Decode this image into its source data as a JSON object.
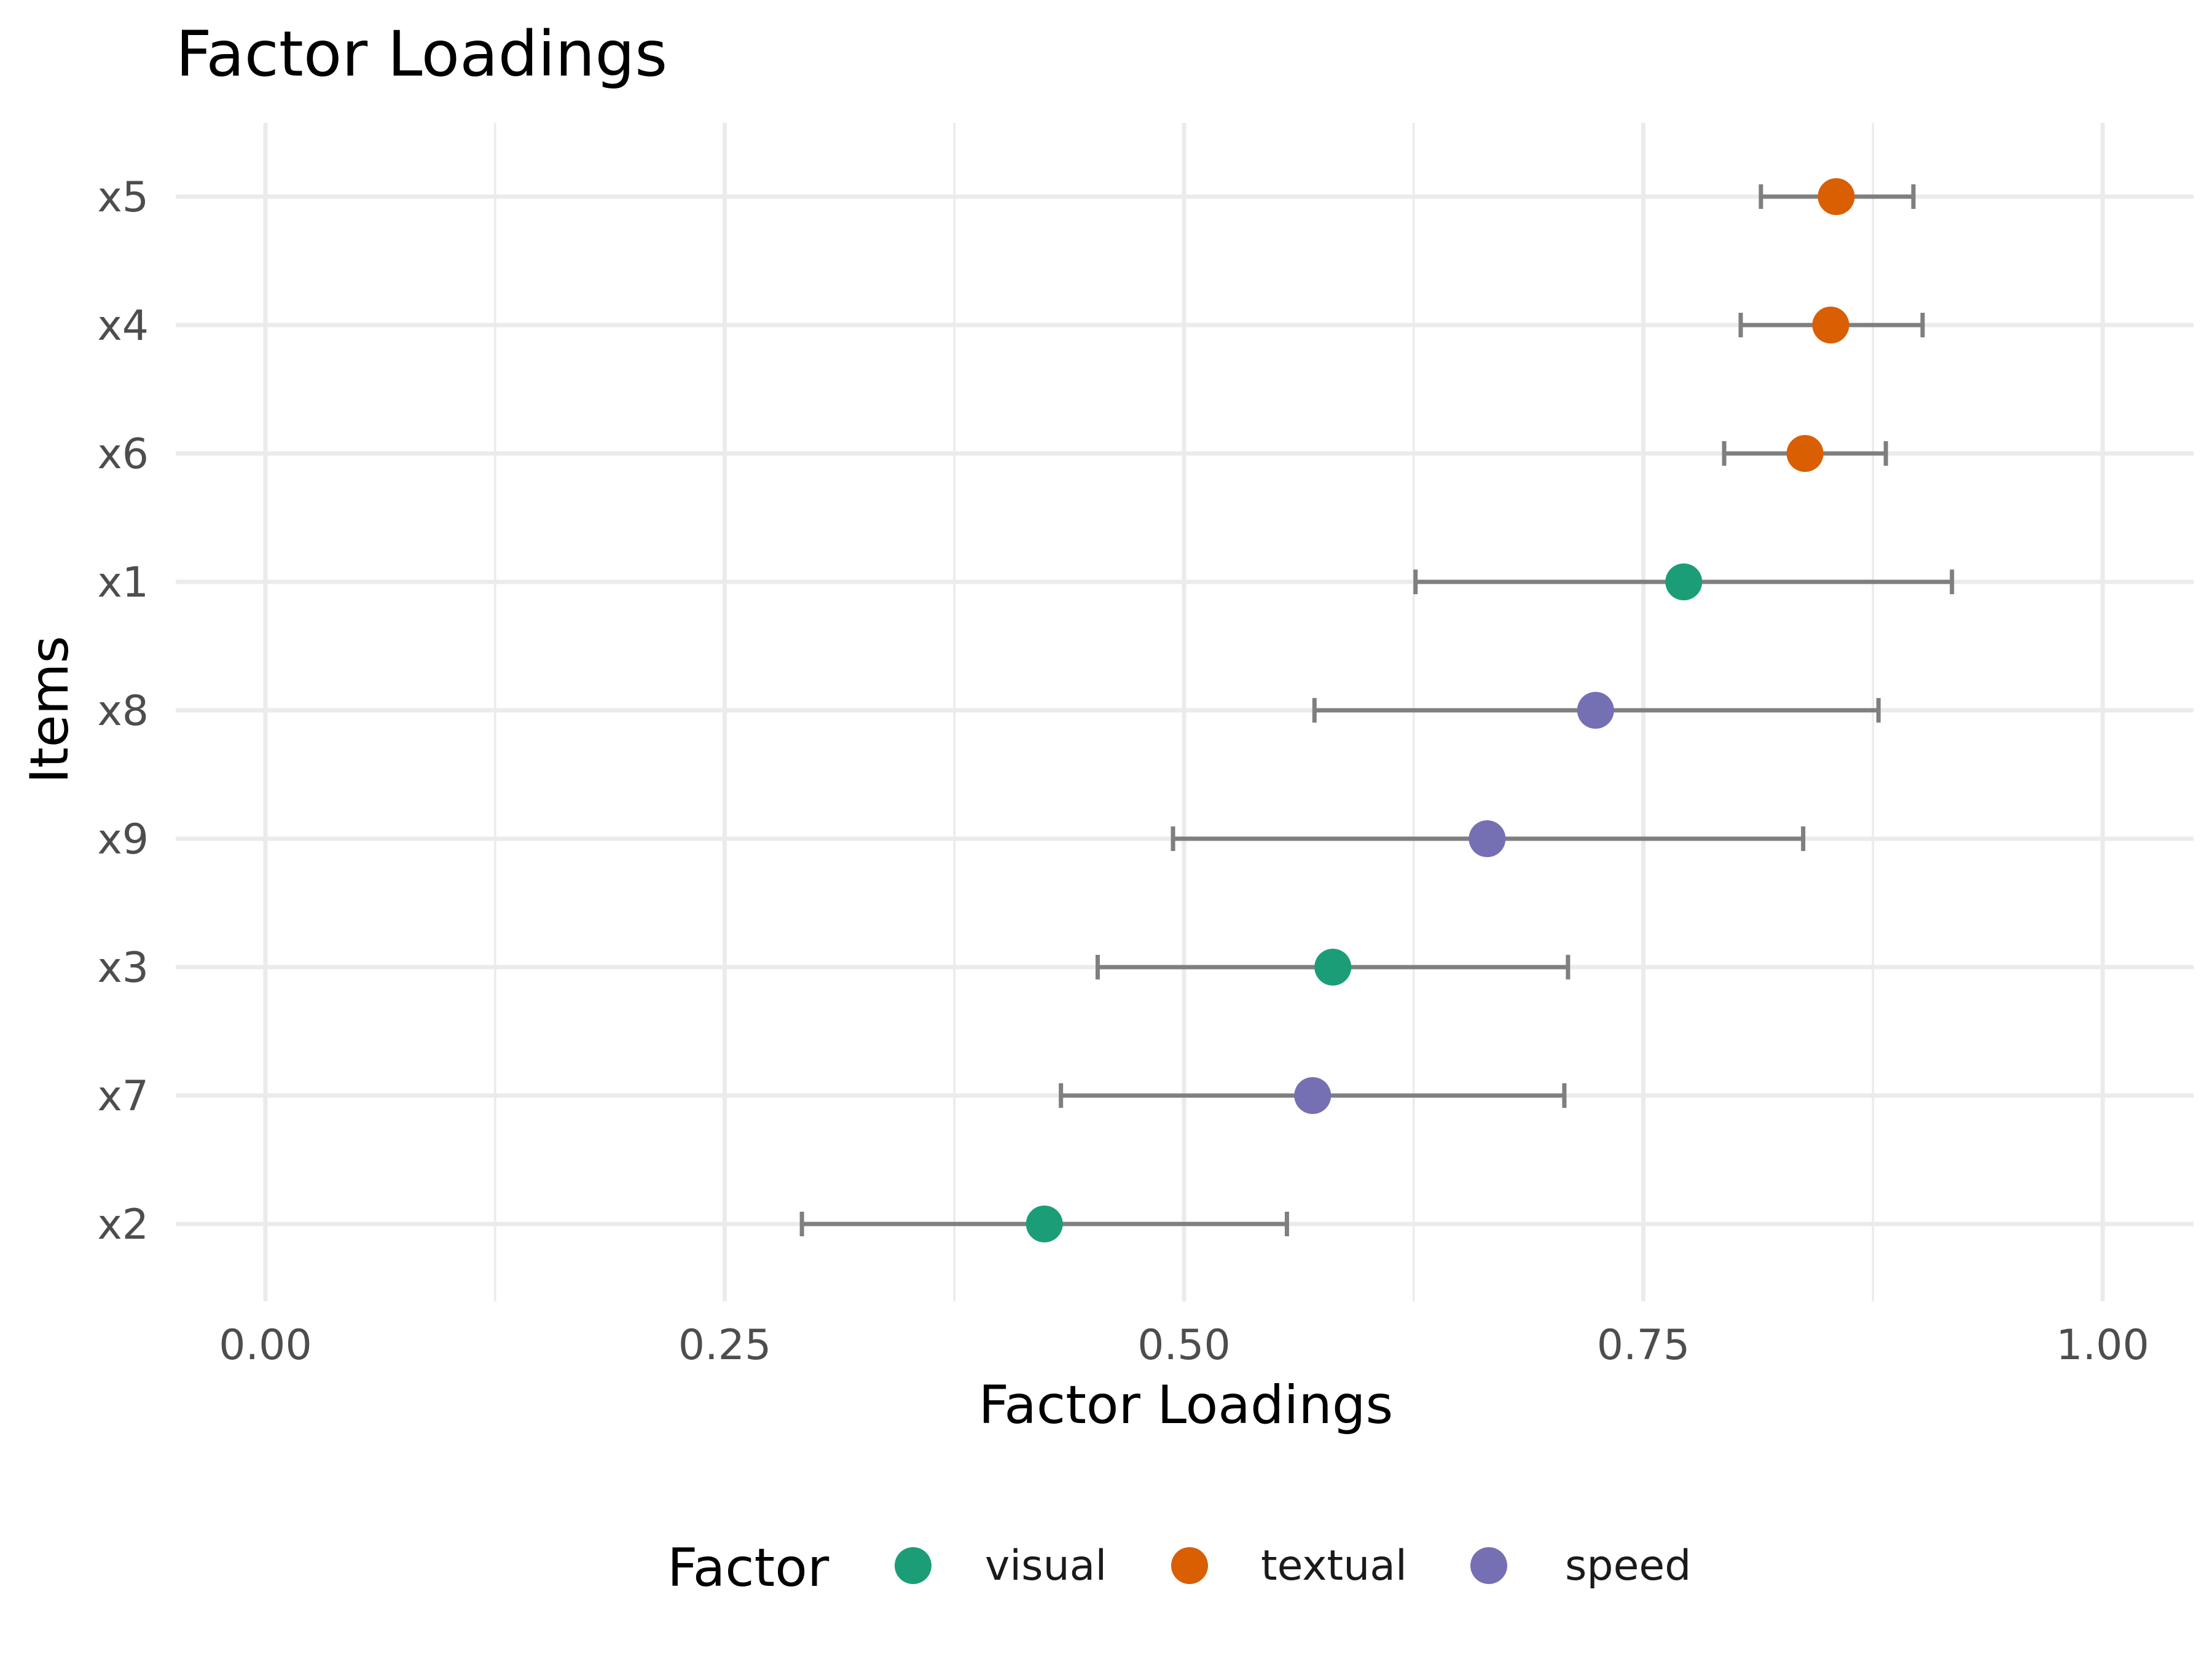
{
  "chart_data": {
    "type": "scatter",
    "title": "Factor Loadings",
    "xlabel": "Factor Loadings",
    "ylabel": "Items",
    "xlim": [
      -0.05,
      1.05
    ],
    "x_ticks": [
      0,
      0.25,
      0.5,
      0.75,
      1
    ],
    "x_tick_labels": [
      "0.00",
      "0.25",
      "0.50",
      "0.75",
      "1.00"
    ],
    "grid": true,
    "legend_position": "bottom",
    "legend_title": "Factor",
    "factors": [
      {
        "name": "visual",
        "color": "#1b9e77"
      },
      {
        "name": "textual",
        "color": "#d95f02"
      },
      {
        "name": "speed",
        "color": "#7570b3"
      }
    ],
    "items_top_to_bottom": [
      "x5",
      "x4",
      "x6",
      "x1",
      "x8",
      "x9",
      "x3",
      "x7",
      "x2"
    ],
    "points": [
      {
        "item": "x5",
        "factor": "textual",
        "loading": 0.855,
        "ci_low": 0.814,
        "ci_high": 0.897
      },
      {
        "item": "x4",
        "factor": "textual",
        "loading": 0.852,
        "ci_low": 0.803,
        "ci_high": 0.902
      },
      {
        "item": "x6",
        "factor": "textual",
        "loading": 0.838,
        "ci_low": 0.794,
        "ci_high": 0.882
      },
      {
        "item": "x1",
        "factor": "visual",
        "loading": 0.772,
        "ci_low": 0.626,
        "ci_high": 0.918
      },
      {
        "item": "x8",
        "factor": "speed",
        "loading": 0.724,
        "ci_low": 0.571,
        "ci_high": 0.878
      },
      {
        "item": "x9",
        "factor": "speed",
        "loading": 0.665,
        "ci_low": 0.494,
        "ci_high": 0.837
      },
      {
        "item": "x3",
        "factor": "visual",
        "loading": 0.581,
        "ci_low": 0.453,
        "ci_high": 0.709
      },
      {
        "item": "x7",
        "factor": "speed",
        "loading": 0.57,
        "ci_low": 0.433,
        "ci_high": 0.707
      },
      {
        "item": "x2",
        "factor": "visual",
        "loading": 0.424,
        "ci_low": 0.292,
        "ci_high": 0.556
      }
    ]
  }
}
